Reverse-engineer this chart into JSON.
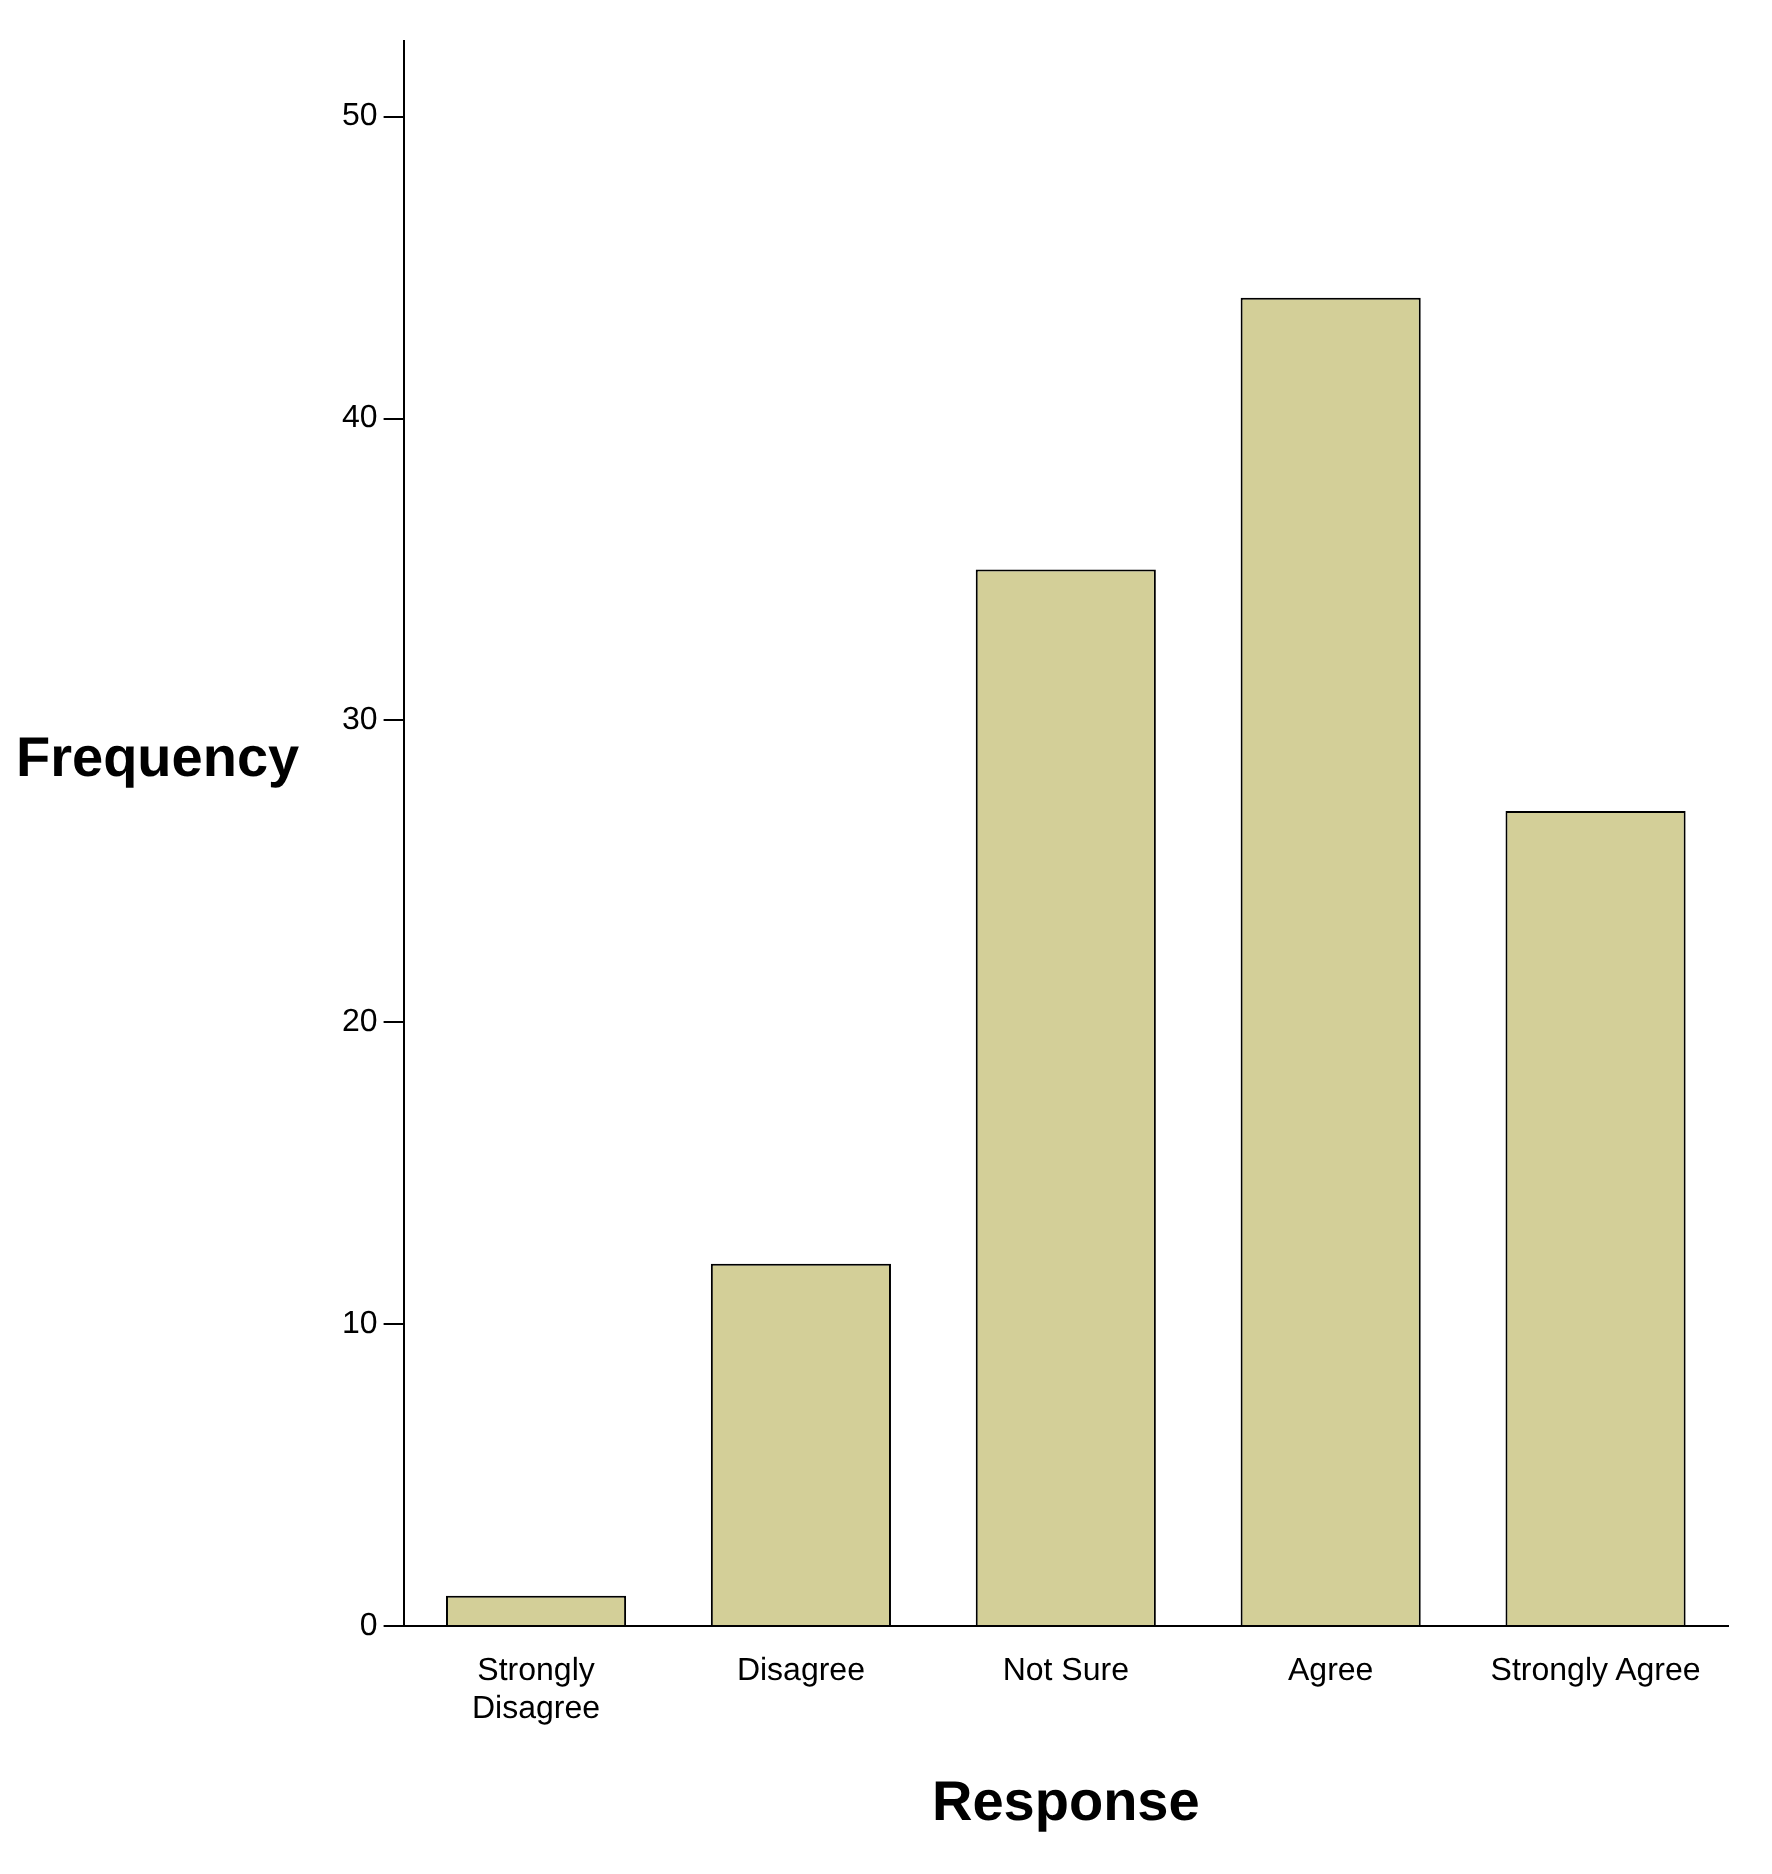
{
  "chart_data": {
    "type": "bar",
    "xlabel": "Response",
    "ylabel": "Frequency",
    "categories": [
      "Strongly Disagree",
      "Disagree",
      "Not Sure",
      "Agree",
      "Strongly Agree"
    ],
    "values": [
      1,
      12,
      35,
      44,
      27
    ],
    "color": "#d3cf98",
    "ylim": [
      0,
      52.5
    ],
    "yticks": [
      0,
      10,
      20,
      30,
      40,
      50
    ],
    "grid": false,
    "legend": false
  }
}
